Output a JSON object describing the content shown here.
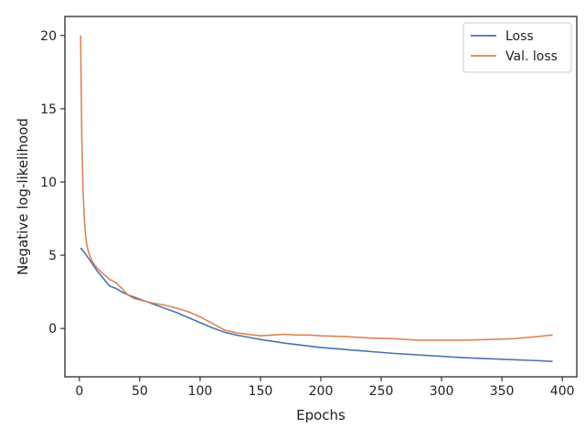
{
  "chart_data": {
    "type": "line",
    "title": "",
    "xlabel": "Epochs",
    "ylabel": "Negative log-likelihood",
    "xlim": [
      -12,
      412
    ],
    "ylim": [
      -3.3,
      21.3
    ],
    "xticks": [
      0,
      50,
      100,
      150,
      200,
      250,
      300,
      350,
      400
    ],
    "yticks": [
      0,
      5,
      10,
      15,
      20
    ],
    "grid": false,
    "legend_position": "top-right",
    "series": [
      {
        "name": "Loss",
        "color": "#4c72b0",
        "x": [
          1,
          5,
          10,
          15,
          20,
          25,
          30,
          35,
          40,
          50,
          60,
          70,
          80,
          90,
          100,
          110,
          120,
          130,
          140,
          150,
          170,
          200,
          230,
          260,
          290,
          320,
          350,
          380,
          392
        ],
        "y": [
          5.5,
          5.1,
          4.5,
          3.9,
          3.4,
          2.9,
          2.75,
          2.5,
          2.3,
          2.0,
          1.7,
          1.4,
          1.1,
          0.75,
          0.4,
          0.05,
          -0.25,
          -0.45,
          -0.6,
          -0.75,
          -1.0,
          -1.3,
          -1.5,
          -1.7,
          -1.85,
          -2.0,
          -2.1,
          -2.2,
          -2.25
        ]
      },
      {
        "name": "Val. loss",
        "color": "#dd8452",
        "x": [
          1,
          2,
          3,
          4,
          5,
          6,
          7,
          8,
          10,
          12,
          15,
          20,
          25,
          30,
          35,
          40,
          45,
          50,
          60,
          70,
          80,
          90,
          100,
          110,
          120,
          130,
          140,
          150,
          160,
          170,
          180,
          190,
          200,
          220,
          240,
          260,
          280,
          300,
          320,
          340,
          360,
          380,
          392
        ],
        "y": [
          20.0,
          13.0,
          9.5,
          7.6,
          6.5,
          5.8,
          5.4,
          5.1,
          4.7,
          4.4,
          4.1,
          3.7,
          3.35,
          3.15,
          2.75,
          2.3,
          2.05,
          1.95,
          1.75,
          1.6,
          1.4,
          1.15,
          0.8,
          0.35,
          -0.1,
          -0.3,
          -0.4,
          -0.5,
          -0.45,
          -0.4,
          -0.45,
          -0.45,
          -0.5,
          -0.55,
          -0.65,
          -0.7,
          -0.8,
          -0.8,
          -0.8,
          -0.75,
          -0.7,
          -0.55,
          -0.45
        ]
      }
    ]
  }
}
